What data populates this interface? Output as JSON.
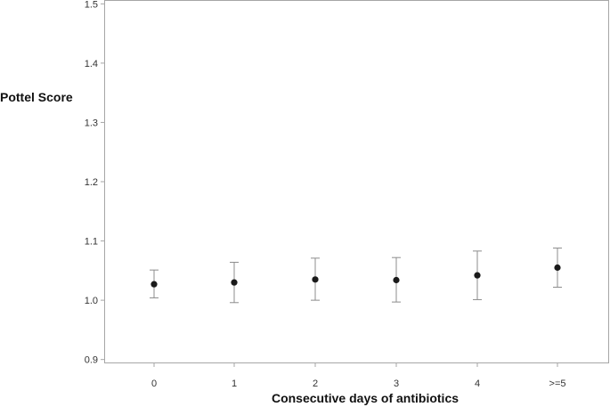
{
  "chart_data": {
    "type": "scatter",
    "title": "",
    "xlabel": "Consecutive days of antibiotics",
    "ylabel": "Pottel Score",
    "categories": [
      "0",
      "1",
      "2",
      "3",
      "4",
      ">=5"
    ],
    "series": [
      {
        "values": [
          1.027,
          1.03,
          1.035,
          1.034,
          1.042,
          1.055
        ],
        "error_low": [
          1.004,
          0.996,
          1.0,
          0.997,
          1.001,
          1.022
        ],
        "error_high": [
          1.051,
          1.064,
          1.071,
          1.072,
          1.083,
          1.088
        ]
      }
    ],
    "yticks": [
      "0.9",
      "1.0",
      "1.1",
      "1.2",
      "1.3",
      "1.4",
      "1.5"
    ],
    "ylim": [
      0.895,
      1.505
    ],
    "grid": false,
    "legend": "none",
    "colors": {
      "point": "#1a1a1a",
      "errorbar": "#8c8c8c",
      "frame": "#a6a6a6"
    }
  }
}
